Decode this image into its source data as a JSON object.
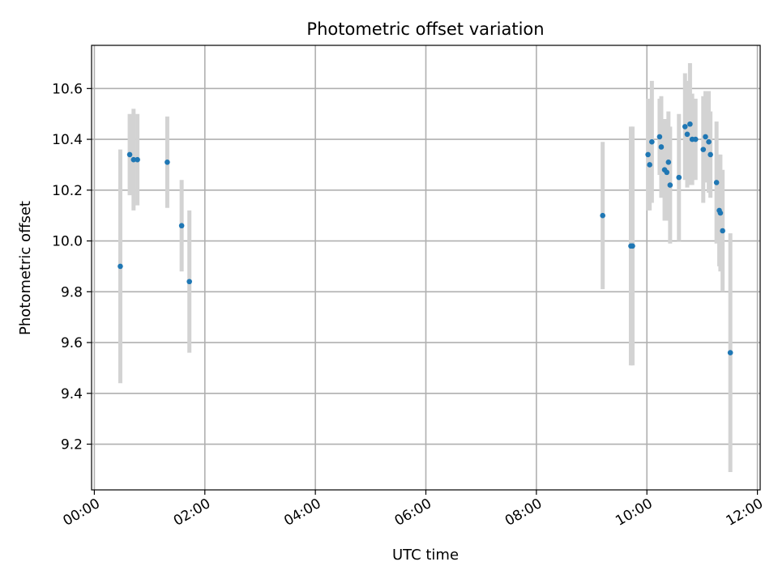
{
  "chart_data": {
    "type": "scatter",
    "title": "Photometric offset variation",
    "xlabel": "UTC time",
    "ylabel": "Photometric offset",
    "x_unit": "hours (UTC)",
    "xlim": [
      -0.05,
      12.05
    ],
    "ylim": [
      9.02,
      10.77
    ],
    "x_ticks": [
      0,
      2,
      4,
      6,
      8,
      10,
      12
    ],
    "x_tick_labels": [
      "00:00",
      "02:00",
      "04:00",
      "06:00",
      "08:00",
      "10:00",
      "12:00"
    ],
    "y_ticks": [
      9.2,
      9.4,
      9.6,
      9.8,
      10.0,
      10.2,
      10.4,
      10.6
    ],
    "y_tick_labels": [
      "9.2",
      "9.4",
      "9.6",
      "9.8",
      "10.0",
      "10.2",
      "10.4",
      "10.6"
    ],
    "grid": true,
    "marker_color": "#1f77b4",
    "errorbar_color": "#d3d3d3",
    "points": [
      {
        "x": 0.47,
        "y": 9.9,
        "err": 0.46
      },
      {
        "x": 0.64,
        "y": 10.34,
        "err": 0.16
      },
      {
        "x": 0.71,
        "y": 10.32,
        "err": 0.2
      },
      {
        "x": 0.78,
        "y": 10.32,
        "err": 0.18
      },
      {
        "x": 1.32,
        "y": 10.31,
        "err": 0.18
      },
      {
        "x": 1.58,
        "y": 10.06,
        "err": 0.18
      },
      {
        "x": 1.72,
        "y": 9.84,
        "err": 0.28
      },
      {
        "x": 9.2,
        "y": 10.1,
        "err": 0.29
      },
      {
        "x": 9.71,
        "y": 9.98,
        "err": 0.47
      },
      {
        "x": 9.74,
        "y": 9.98,
        "err": 0.47
      },
      {
        "x": 10.02,
        "y": 10.34,
        "err": 0.22
      },
      {
        "x": 10.05,
        "y": 10.3,
        "err": 0.18
      },
      {
        "x": 10.09,
        "y": 10.39,
        "err": 0.24
      },
      {
        "x": 10.23,
        "y": 10.41,
        "err": 0.15
      },
      {
        "x": 10.26,
        "y": 10.37,
        "err": 0.2
      },
      {
        "x": 10.32,
        "y": 10.28,
        "err": 0.2
      },
      {
        "x": 10.36,
        "y": 10.27,
        "err": 0.19
      },
      {
        "x": 10.39,
        "y": 10.31,
        "err": 0.2
      },
      {
        "x": 10.42,
        "y": 10.22,
        "err": 0.23
      },
      {
        "x": 10.58,
        "y": 10.25,
        "err": 0.25
      },
      {
        "x": 10.69,
        "y": 10.45,
        "err": 0.21
      },
      {
        "x": 10.73,
        "y": 10.42,
        "err": 0.21
      },
      {
        "x": 10.78,
        "y": 10.46,
        "err": 0.24
      },
      {
        "x": 10.82,
        "y": 10.4,
        "err": 0.18
      },
      {
        "x": 10.88,
        "y": 10.4,
        "err": 0.16
      },
      {
        "x": 11.02,
        "y": 10.36,
        "err": 0.21
      },
      {
        "x": 11.06,
        "y": 10.41,
        "err": 0.18
      },
      {
        "x": 11.12,
        "y": 10.39,
        "err": 0.2
      },
      {
        "x": 11.15,
        "y": 10.34,
        "err": 0.17
      },
      {
        "x": 11.26,
        "y": 10.23,
        "err": 0.24
      },
      {
        "x": 11.31,
        "y": 10.12,
        "err": 0.22
      },
      {
        "x": 11.33,
        "y": 10.11,
        "err": 0.23
      },
      {
        "x": 11.37,
        "y": 10.04,
        "err": 0.24
      },
      {
        "x": 11.51,
        "y": 9.56,
        "err": 0.47
      }
    ]
  }
}
